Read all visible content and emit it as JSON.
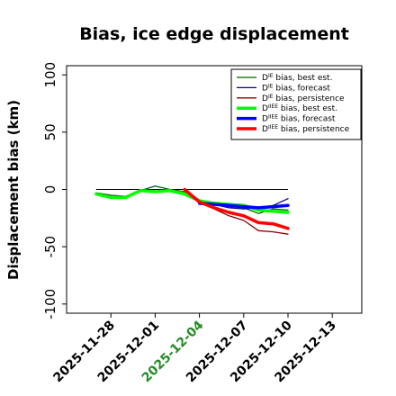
{
  "chart_data": {
    "type": "line",
    "title": "Bias, ice edge displacement",
    "xlabel": "",
    "ylabel": "Displacement bias (km)",
    "xlim": [
      "2025-11-25",
      "2025-12-15"
    ],
    "ylim": [
      -108,
      108
    ],
    "yticks": [
      100,
      50,
      0,
      -50,
      -100
    ],
    "xticks": [
      "2025-11-28",
      "2025-12-01",
      "2025-12-04",
      "2025-12-07",
      "2025-12-10",
      "2025-12-13"
    ],
    "highlight_tick": "2025-12-04",
    "highlight_color": "#228b22",
    "legend_position": "top-right",
    "zero_line": true,
    "series": [
      {
        "name_base": "D",
        "name_sup": "IE",
        "name_rest": " bias, best est.",
        "color": "#006400",
        "width": 1.3,
        "x": [
          "2025-11-27",
          "2025-11-28",
          "2025-11-29",
          "2025-11-30",
          "2025-12-01",
          "2025-12-02",
          "2025-12-03",
          "2025-12-04",
          "2025-12-05",
          "2025-12-06",
          "2025-12-07",
          "2025-12-08",
          "2025-12-09",
          "2025-12-10"
        ],
        "y": [
          -3,
          -5,
          -6,
          -1,
          3,
          0,
          -2,
          -9,
          -12,
          -15,
          -16,
          -21,
          -17,
          -18
        ]
      },
      {
        "name_base": "D",
        "name_sup": "IE",
        "name_rest": " bias, forecast",
        "color": "#00008b",
        "width": 1.3,
        "x": [
          "2025-12-04",
          "2025-12-05",
          "2025-12-06",
          "2025-12-07",
          "2025-12-08",
          "2025-12-09",
          "2025-12-10"
        ],
        "y": [
          -13,
          -13,
          -16,
          -17,
          -16,
          -14,
          -8
        ]
      },
      {
        "name_base": "D",
        "name_sup": "IE",
        "name_rest": " bias, persistence",
        "color": "#8b0000",
        "width": 1.3,
        "x": [
          "2025-12-03",
          "2025-12-04",
          "2025-12-05",
          "2025-12-06",
          "2025-12-07",
          "2025-12-08",
          "2025-12-09",
          "2025-12-10"
        ],
        "y": [
          0,
          -11,
          -17,
          -23,
          -27,
          -36,
          -37,
          -39
        ]
      },
      {
        "name_base": "D",
        "name_sup": "IIEE",
        "name_rest": " bias, best est.",
        "color": "#00ff00",
        "width": 3.5,
        "x": [
          "2025-11-27",
          "2025-11-28",
          "2025-11-29",
          "2025-11-30",
          "2025-12-01",
          "2025-12-02",
          "2025-12-03",
          "2025-12-04",
          "2025-12-05",
          "2025-12-06",
          "2025-12-07",
          "2025-12-08",
          "2025-12-09",
          "2025-12-10"
        ],
        "y": [
          -4,
          -7,
          -7,
          -1,
          -2,
          -1,
          -4,
          -10,
          -12,
          -13,
          -14,
          -18,
          -19,
          -20
        ]
      },
      {
        "name_base": "D",
        "name_sup": "IIEE",
        "name_rest": " bias, forecast",
        "color": "#0000ff",
        "width": 3.5,
        "x": [
          "2025-12-04",
          "2025-12-05",
          "2025-12-06",
          "2025-12-07",
          "2025-12-08",
          "2025-12-09",
          "2025-12-10"
        ],
        "y": [
          -12,
          -13,
          -14,
          -15,
          -16,
          -15,
          -14
        ]
      },
      {
        "name_base": "D",
        "name_sup": "IIEE",
        "name_rest": " bias, persistence",
        "color": "#ff0000",
        "width": 3.5,
        "x": [
          "2025-12-03",
          "2025-12-04",
          "2025-12-05",
          "2025-12-06",
          "2025-12-07",
          "2025-12-08",
          "2025-12-09",
          "2025-12-10"
        ],
        "y": [
          0,
          -11,
          -16,
          -20,
          -23,
          -29,
          -30,
          -34
        ]
      }
    ]
  }
}
